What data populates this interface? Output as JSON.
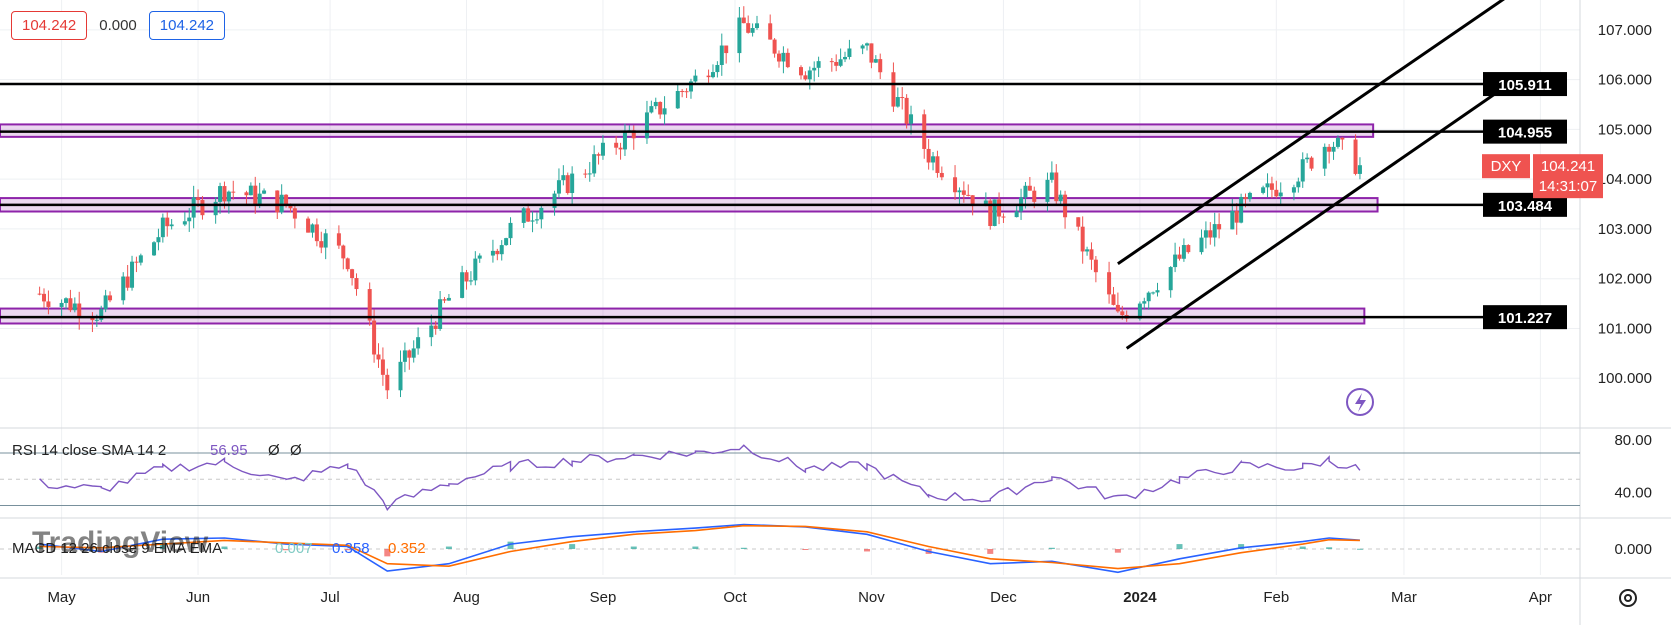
{
  "header": {
    "sell": "104.242",
    "spread": "0.000",
    "buy": "104.242"
  },
  "symbol": "DXY",
  "price": {
    "last": "104.241",
    "countdown": "14:31:07"
  },
  "watermark": "TradingView",
  "colors": {
    "up": "#26a69a",
    "down": "#ef5350",
    "zone": "#8e24aa",
    "rsi": "#7e57c2",
    "macd": "#2962ff",
    "signal": "#ff6d00",
    "axis_tag": "#000000",
    "price_tag": "#ef5350"
  },
  "chart_data": [
    {
      "type": "candlestick",
      "title": "DXY",
      "y_axis_ticks": [
        "100.000",
        "101.000",
        "102.000",
        "103.000",
        "104.000",
        "105.000",
        "106.000",
        "107.000"
      ],
      "ylim": [
        99.0,
        107.6
      ],
      "x_ticks": [
        "May",
        "Jun",
        "Jul",
        "Aug",
        "Sep",
        "Oct",
        "Nov",
        "Dec",
        "2024",
        "Feb",
        "Mar",
        "Apr"
      ],
      "horizontal_levels": [
        {
          "label": "105.911",
          "value": 105.911
        },
        {
          "label": "104.955",
          "value": 104.955
        },
        {
          "label": "103.484",
          "value": 103.484
        },
        {
          "label": "101.227",
          "value": 101.227
        }
      ],
      "support_resistance_zones": [
        [
          104.85,
          105.1
        ],
        [
          103.35,
          103.62
        ],
        [
          101.1,
          101.4
        ]
      ],
      "channel": {
        "upper": [
          {
            "date": "2023-12-27",
            "value": 102.3
          },
          {
            "date": "2024-03-25",
            "value": 107.7
          }
        ],
        "lower": [
          {
            "date": "2023-12-29",
            "value": 100.6
          },
          {
            "date": "2024-03-28",
            "value": 106.1
          }
        ]
      },
      "close_series": {
        "dates": [
          "2023-04-26",
          "2023-05-10",
          "2023-05-24",
          "2023-06-07",
          "2023-06-21",
          "2023-07-05",
          "2023-07-14",
          "2023-07-28",
          "2023-08-11",
          "2023-08-25",
          "2023-09-08",
          "2023-09-22",
          "2023-10-03",
          "2023-10-17",
          "2023-10-31",
          "2023-11-14",
          "2023-11-28",
          "2023-12-12",
          "2023-12-27",
          "2024-01-10",
          "2024-01-24",
          "2024-02-07",
          "2024-02-13",
          "2024-02-20"
        ],
        "values": [
          101.7,
          101.3,
          103.0,
          103.8,
          103.5,
          102.4,
          99.8,
          101.6,
          103.0,
          104.0,
          105.0,
          106.0,
          107.1,
          106.2,
          106.6,
          104.5,
          103.3,
          103.9,
          101.2,
          102.4,
          103.4,
          104.2,
          104.8,
          104.241
        ]
      }
    },
    {
      "type": "line",
      "title": "RSI 14 close SMA 14 2",
      "value_label": "56.95",
      "extra_labels": [
        "Ø",
        "Ø"
      ],
      "y_axis_ticks": [
        "40.00",
        "80.00"
      ],
      "ylim": [
        22,
        86
      ],
      "bands": [
        30,
        50,
        70
      ],
      "series": [
        {
          "values": [
            47,
            42,
            58,
            63,
            48,
            61,
            30,
            47,
            60,
            64,
            68,
            70,
            75,
            58,
            60,
            38,
            35,
            52,
            35,
            50,
            60,
            59,
            65,
            57
          ]
        }
      ]
    },
    {
      "type": "bar",
      "title": "MACD 12 26 close 9 EMA EMA",
      "values_labels": [
        "0.007",
        "0.358",
        "0.352"
      ],
      "y_axis_ticks": [
        "0.000"
      ],
      "ylim": [
        -1.1,
        1.1
      ],
      "series": [
        {
          "values": [
            0.2,
            -0.1,
            0.4,
            0.45,
            0.2,
            0.1,
            -0.9,
            -0.6,
            0.2,
            0.5,
            0.7,
            0.85,
            1.0,
            0.9,
            0.6,
            -0.1,
            -0.6,
            -0.5,
            -0.95,
            -0.4,
            0.05,
            0.3,
            0.45,
            0.36
          ]
        },
        {
          "values": [
            0.1,
            0.05,
            0.2,
            0.35,
            0.25,
            0.15,
            -0.6,
            -0.7,
            -0.1,
            0.3,
            0.6,
            0.75,
            0.95,
            0.92,
            0.7,
            0.1,
            -0.4,
            -0.55,
            -0.8,
            -0.6,
            -0.15,
            0.2,
            0.38,
            0.35
          ]
        }
      ]
    }
  ]
}
